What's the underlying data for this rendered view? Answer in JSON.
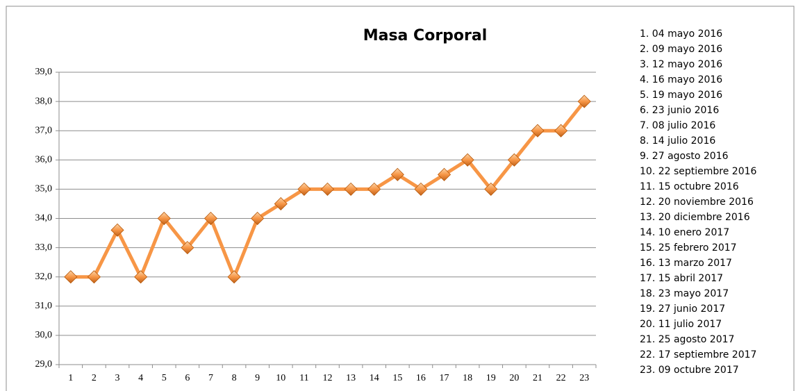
{
  "chart_data": {
    "type": "line",
    "title": "Masa Corporal",
    "categories": [
      "1",
      "2",
      "3",
      "4",
      "5",
      "6",
      "7",
      "8",
      "9",
      "10",
      "11",
      "12",
      "13",
      "14",
      "15",
      "16",
      "17",
      "18",
      "19",
      "20",
      "21",
      "22",
      "23"
    ],
    "series": [
      {
        "color": "#f79646",
        "values": [
          32,
          32,
          33.6,
          32,
          34,
          33,
          34,
          32,
          34,
          34.5,
          35,
          35,
          35,
          35,
          35.5,
          35,
          35.5,
          36,
          35,
          36,
          37,
          37,
          38
        ]
      }
    ],
    "ylim": [
      29,
      39
    ],
    "yticks": [
      {
        "value": 29,
        "label": "29,0"
      },
      {
        "value": 30,
        "label": "30,0"
      },
      {
        "value": 31,
        "label": "31,0"
      },
      {
        "value": 32,
        "label": "32,0"
      },
      {
        "value": 33,
        "label": "33,0"
      },
      {
        "value": 34,
        "label": "34,0"
      },
      {
        "value": 35,
        "label": "35,0"
      },
      {
        "value": 36,
        "label": "36,0"
      },
      {
        "value": 37,
        "label": "37,0"
      },
      {
        "value": 38,
        "label": "38,0"
      },
      {
        "value": 39,
        "label": "39,0"
      }
    ],
    "grid": true,
    "annotations": [
      "1. 04 mayo 2016",
      "2. 09 mayo 2016",
      "3. 12 mayo 2016",
      "4. 16 mayo 2016",
      "5. 19 mayo 2016",
      "6. 23 junio 2016",
      "7. 08 julio 2016",
      "8. 14 julio 2016",
      "9. 27 agosto 2016",
      "10. 22 septiembre 2016",
      "11. 15 octubre 2016",
      "12. 20 noviembre 2016",
      "13. 20 diciembre 2016",
      "14. 10 enero 2017",
      "15. 25 febrero 2017",
      "16. 13 marzo 2017",
      "17. 15 abril 2017",
      "18. 23 mayo 2017",
      "19. 27 junio 2017",
      "20. 11 julio 2017",
      "21. 25 agosto 2017",
      "22. 17 septiembre 2017",
      "23. 09 octubre 2017"
    ]
  }
}
